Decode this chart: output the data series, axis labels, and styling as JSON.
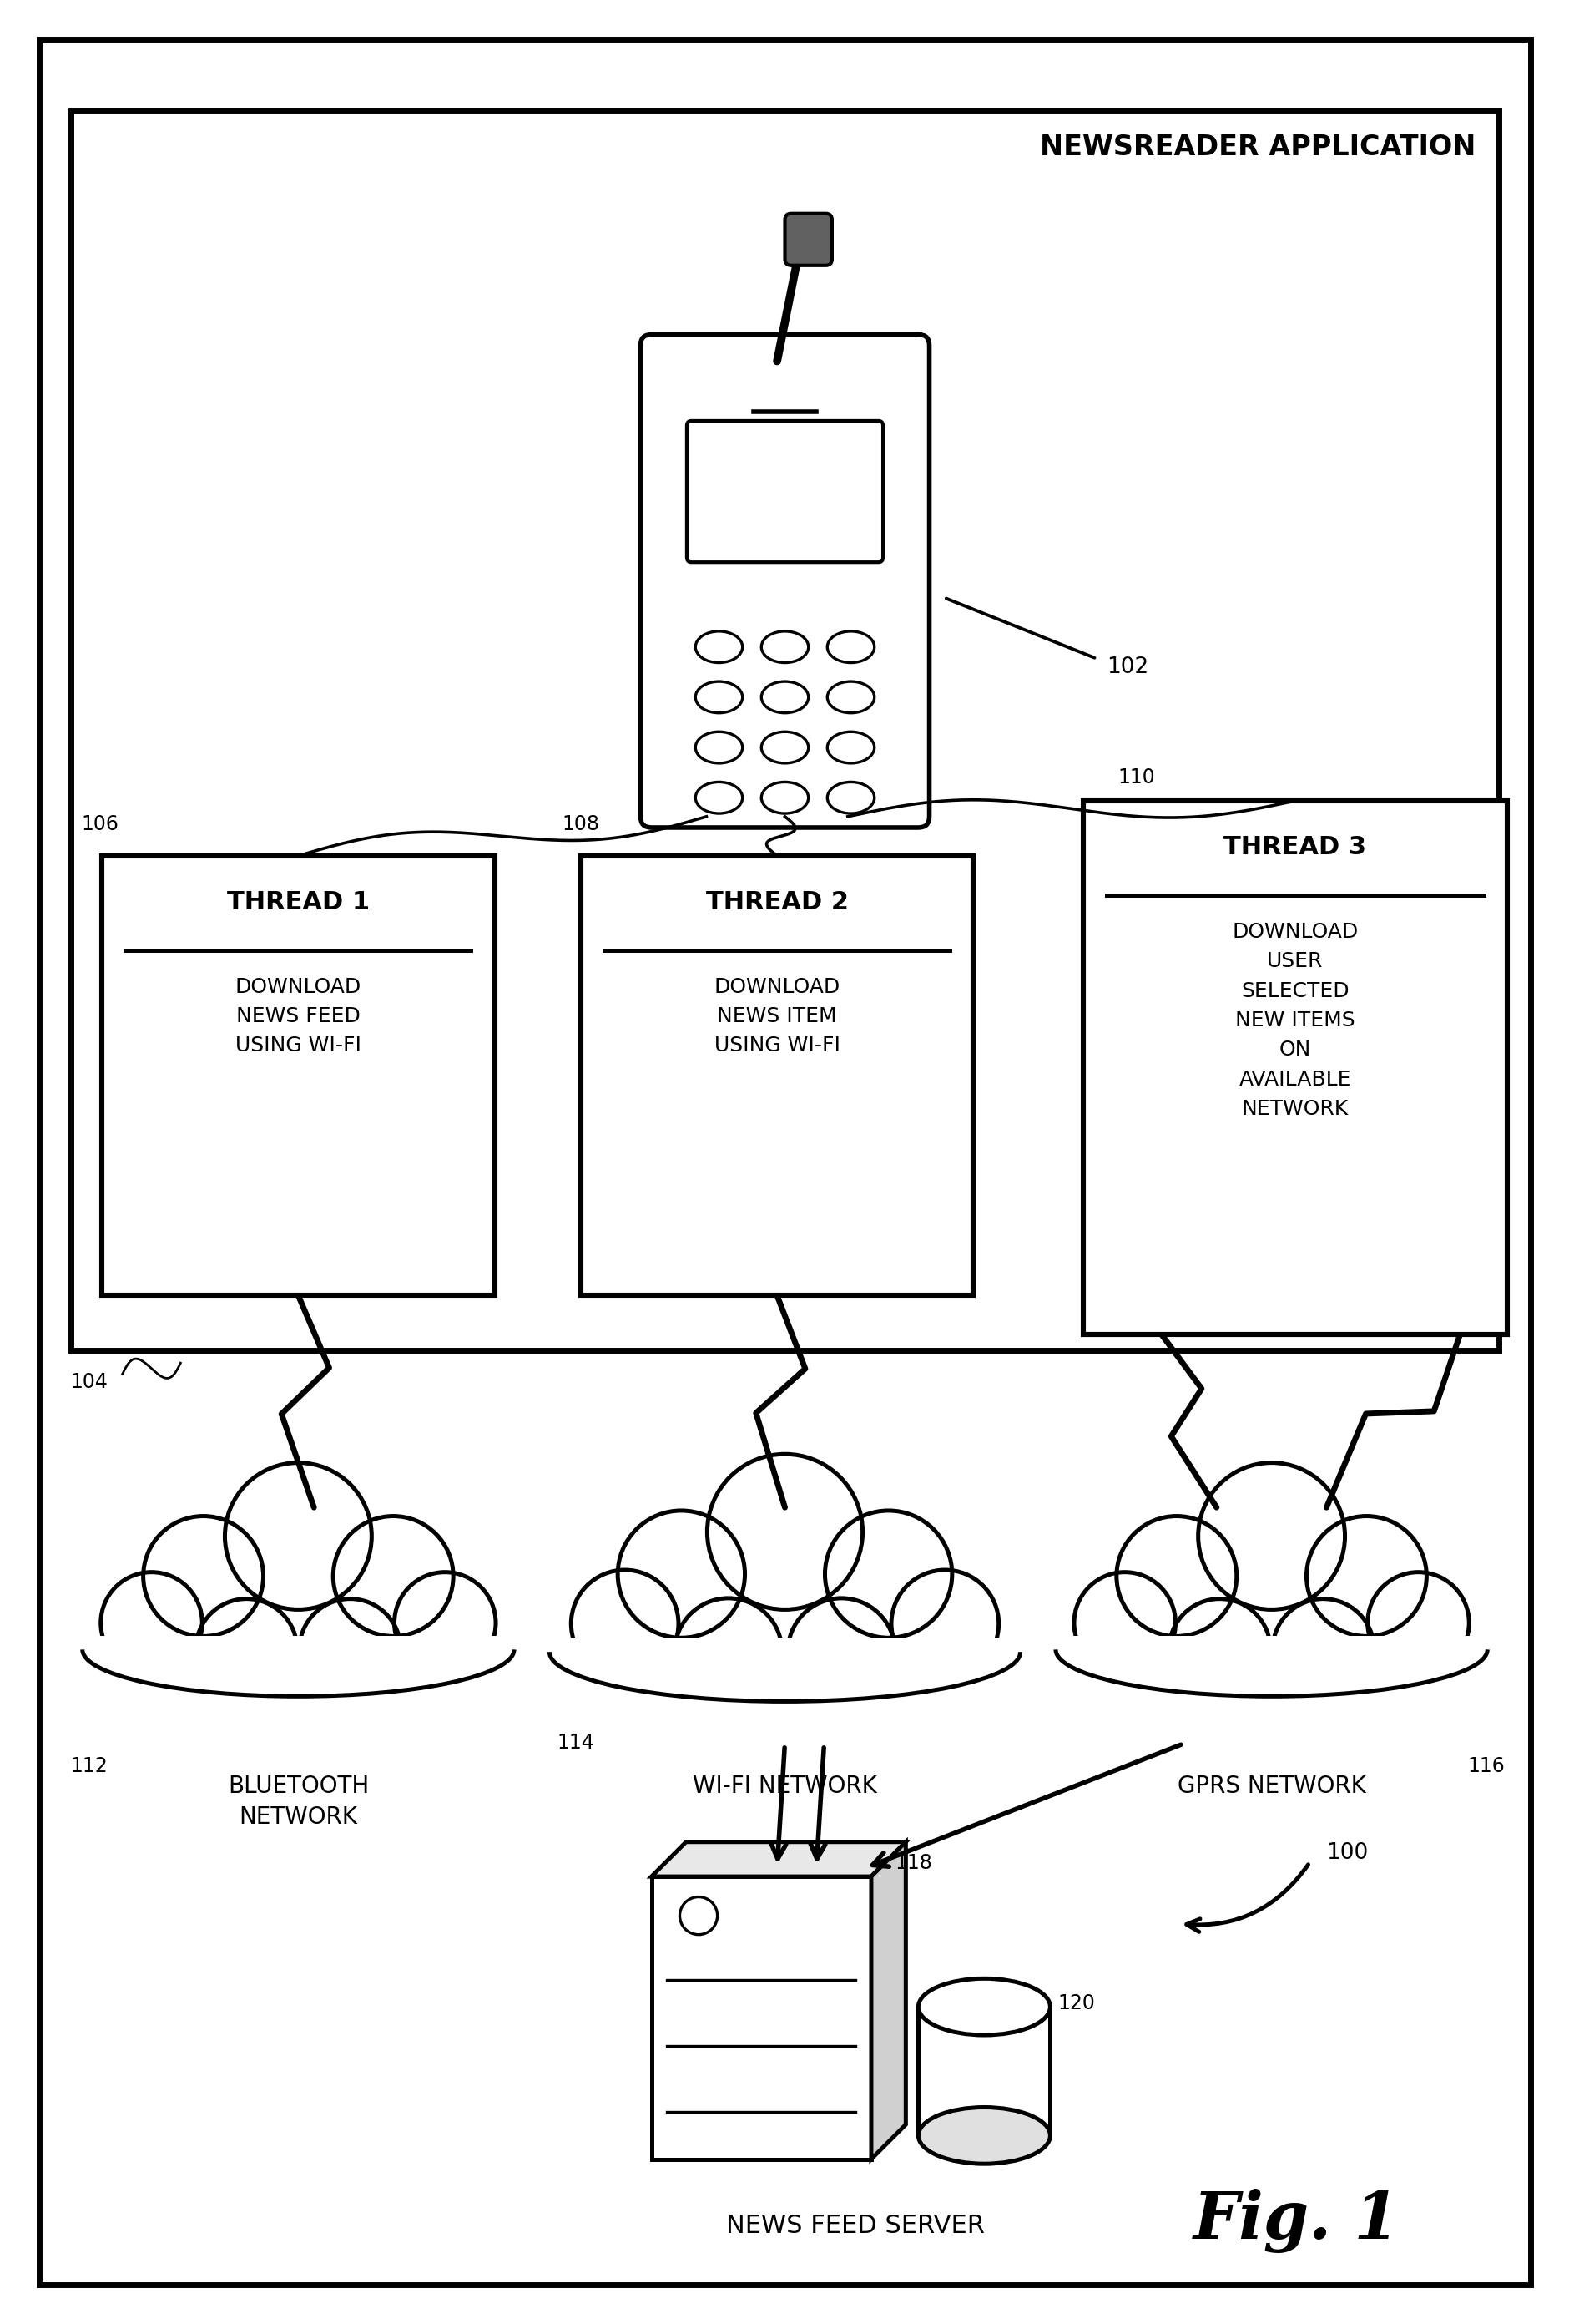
{
  "title": "NEWSREADER APPLICATION",
  "fig_label": "Fig. 1",
  "bg": "#ffffff",
  "lc": "#000000",
  "phone_label": "102",
  "thread1_label": "106",
  "thread2_label": "108",
  "thread3_label": "110",
  "bt_label": "112",
  "wifi_label": "114",
  "gprs_label": "116",
  "server_label": "118",
  "db_label": "120",
  "ref100": "100",
  "ref104": "104",
  "thread1_title": "THREAD 1",
  "thread2_title": "THREAD 2",
  "thread3_title": "THREAD 3",
  "thread1_body": "DOWNLOAD\nNEWS FEED\nUSING WI-FI",
  "thread2_body": "DOWNLOAD\nNEWS ITEM\nUSING WI-FI",
  "thread3_body": "DOWNLOAD\nUSER\nSELECTED\nNEW ITEMS\nON\nAVAILABLE\nNETWORK",
  "bt_text": "BLUETOOTH\nNETWORK",
  "wifi_text": "WI-FI NETWORK",
  "gprs_text": "GPRS NETWORK",
  "server_text": "NEWS FEED SERVER"
}
